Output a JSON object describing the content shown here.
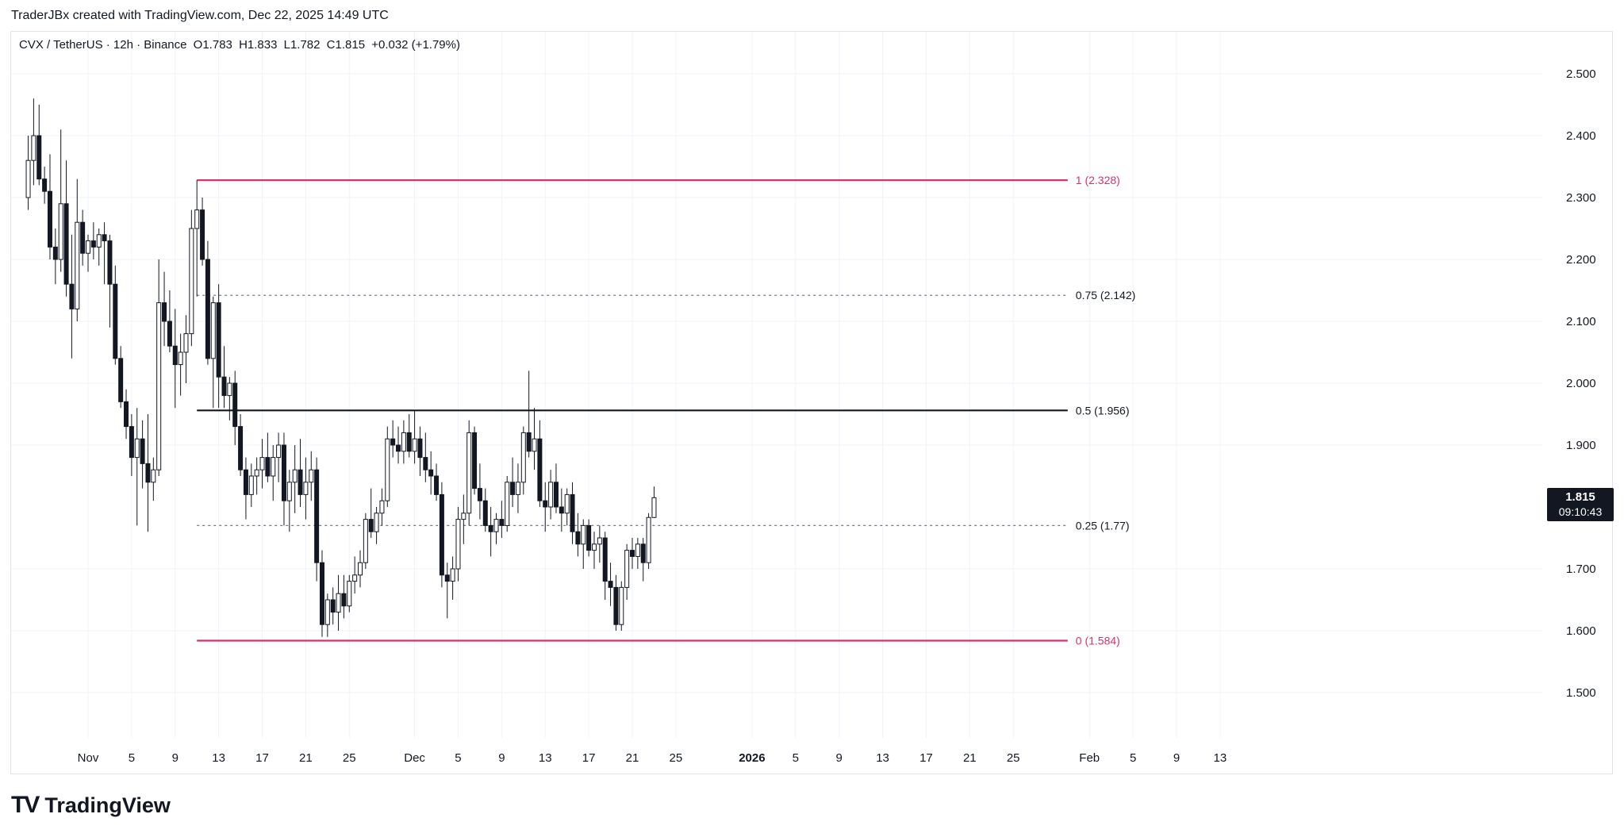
{
  "header": {
    "attribution": "TraderJBx created with TradingView.com, Dec 22, 2025 14:49 UTC"
  },
  "legend": {
    "symbol": "CVX / TetherUS · 12h · Binance",
    "open": "O1.783",
    "high": "H1.833",
    "low": "L1.782",
    "close": "C1.815",
    "change": "+0.032 (+1.79%)"
  },
  "price_badge": {
    "price": "1.815",
    "countdown": "09:10:43"
  },
  "logo": {
    "mark": "TV",
    "text": "TradingView"
  },
  "colors": {
    "fib_edge": "#d6336c",
    "fib_mid": "#131722",
    "fib_dotted": "#787b86",
    "grid": "#f0f3fa",
    "candle": "#131722"
  },
  "chart_data": {
    "type": "candlestick",
    "title": "",
    "ylim": [
      1.4,
      2.57
    ],
    "yticks": [
      "2.500",
      "2.400",
      "2.300",
      "2.200",
      "2.100",
      "2.000",
      "1.900",
      "1.700",
      "1.600",
      "1.500"
    ],
    "xticks": [
      {
        "label": "Nov",
        "t": 0
      },
      {
        "label": "5",
        "t": 8
      },
      {
        "label": "9",
        "t": 16
      },
      {
        "label": "13",
        "t": 24
      },
      {
        "label": "17",
        "t": 32
      },
      {
        "label": "21",
        "t": 40
      },
      {
        "label": "25",
        "t": 48
      },
      {
        "label": "Dec",
        "t": 60
      },
      {
        "label": "5",
        "t": 68
      },
      {
        "label": "9",
        "t": 76
      },
      {
        "label": "13",
        "t": 84
      },
      {
        "label": "17",
        "t": 92
      },
      {
        "label": "21",
        "t": 100
      },
      {
        "label": "25",
        "t": 108
      },
      {
        "label": "2026",
        "t": 122
      },
      {
        "label": "5",
        "t": 130
      },
      {
        "label": "9",
        "t": 138
      },
      {
        "label": "13",
        "t": 146
      },
      {
        "label": "17",
        "t": 154
      },
      {
        "label": "21",
        "t": 162
      },
      {
        "label": "25",
        "t": 170
      },
      {
        "label": "Feb",
        "t": 184
      },
      {
        "label": "5",
        "t": 192
      },
      {
        "label": "9",
        "t": 200
      },
      {
        "label": "13",
        "t": 208
      }
    ],
    "fib_levels": [
      {
        "label": "1 (2.328)",
        "value": 2.328,
        "style": "solid-edge"
      },
      {
        "label": "0.75 (2.142)",
        "value": 2.142,
        "style": "dotted"
      },
      {
        "label": "0.5 (1.956)",
        "value": 1.956,
        "style": "solid-mid"
      },
      {
        "label": "0.25 (1.77)",
        "value": 1.77,
        "style": "dotted"
      },
      {
        "label": "0 (1.584)",
        "value": 1.584,
        "style": "solid-edge"
      }
    ],
    "fib_start_t": 20,
    "fib_end_t": 180,
    "candles": [
      {
        "t": -11,
        "o": 2.3,
        "h": 2.4,
        "l": 2.28,
        "c": 2.36
      },
      {
        "t": -10,
        "o": 2.36,
        "h": 2.46,
        "l": 2.32,
        "c": 2.4
      },
      {
        "t": -9,
        "o": 2.4,
        "h": 2.45,
        "l": 2.32,
        "c": 2.33
      },
      {
        "t": -8,
        "o": 2.33,
        "h": 2.35,
        "l": 2.29,
        "c": 2.31
      },
      {
        "t": -7,
        "o": 2.31,
        "h": 2.37,
        "l": 2.2,
        "c": 2.22
      },
      {
        "t": -6,
        "o": 2.22,
        "h": 2.25,
        "l": 2.16,
        "c": 2.2
      },
      {
        "t": -5,
        "o": 2.2,
        "h": 2.41,
        "l": 2.18,
        "c": 2.29
      },
      {
        "t": -4,
        "o": 2.29,
        "h": 2.36,
        "l": 2.14,
        "c": 2.16
      },
      {
        "t": -3,
        "o": 2.16,
        "h": 2.24,
        "l": 2.04,
        "c": 2.12
      },
      {
        "t": -2,
        "o": 2.12,
        "h": 2.33,
        "l": 2.1,
        "c": 2.26
      },
      {
        "t": -1,
        "o": 2.26,
        "h": 2.28,
        "l": 2.19,
        "c": 2.21
      },
      {
        "t": 0,
        "o": 2.21,
        "h": 2.24,
        "l": 2.18,
        "c": 2.23
      },
      {
        "t": 1,
        "o": 2.23,
        "h": 2.26,
        "l": 2.2,
        "c": 2.22
      },
      {
        "t": 2,
        "o": 2.22,
        "h": 2.25,
        "l": 2.19,
        "c": 2.24
      },
      {
        "t": 3,
        "o": 2.24,
        "h": 2.26,
        "l": 2.16,
        "c": 2.23
      },
      {
        "t": 4,
        "o": 2.23,
        "h": 2.24,
        "l": 2.09,
        "c": 2.16
      },
      {
        "t": 5,
        "o": 2.16,
        "h": 2.19,
        "l": 2.03,
        "c": 2.04
      },
      {
        "t": 6,
        "o": 2.04,
        "h": 2.06,
        "l": 1.96,
        "c": 1.97
      },
      {
        "t": 7,
        "o": 1.97,
        "h": 1.99,
        "l": 1.91,
        "c": 1.93
      },
      {
        "t": 8,
        "o": 1.93,
        "h": 1.95,
        "l": 1.85,
        "c": 1.88
      },
      {
        "t": 9,
        "o": 1.88,
        "h": 1.96,
        "l": 1.77,
        "c": 1.91
      },
      {
        "t": 10,
        "o": 1.91,
        "h": 1.94,
        "l": 1.83,
        "c": 1.87
      },
      {
        "t": 11,
        "o": 1.87,
        "h": 1.95,
        "l": 1.76,
        "c": 1.84
      },
      {
        "t": 12,
        "o": 1.84,
        "h": 1.88,
        "l": 1.81,
        "c": 1.86
      },
      {
        "t": 13,
        "o": 1.86,
        "h": 2.2,
        "l": 1.85,
        "c": 2.13
      },
      {
        "t": 14,
        "o": 2.13,
        "h": 2.18,
        "l": 2.06,
        "c": 2.1
      },
      {
        "t": 15,
        "o": 2.1,
        "h": 2.15,
        "l": 2.05,
        "c": 2.06
      },
      {
        "t": 16,
        "o": 2.06,
        "h": 2.12,
        "l": 1.96,
        "c": 2.03
      },
      {
        "t": 17,
        "o": 2.03,
        "h": 2.08,
        "l": 1.98,
        "c": 2.05
      },
      {
        "t": 18,
        "o": 2.05,
        "h": 2.11,
        "l": 2.0,
        "c": 2.08
      },
      {
        "t": 19,
        "o": 2.08,
        "h": 2.28,
        "l": 2.06,
        "c": 2.25
      },
      {
        "t": 20,
        "o": 2.25,
        "h": 2.328,
        "l": 2.14,
        "c": 2.28
      },
      {
        "t": 21,
        "o": 2.28,
        "h": 2.3,
        "l": 2.19,
        "c": 2.2
      },
      {
        "t": 22,
        "o": 2.2,
        "h": 2.23,
        "l": 2.03,
        "c": 2.04
      },
      {
        "t": 23,
        "o": 2.04,
        "h": 2.14,
        "l": 1.96,
        "c": 2.13
      },
      {
        "t": 24,
        "o": 2.13,
        "h": 2.16,
        "l": 1.96,
        "c": 2.01
      },
      {
        "t": 25,
        "o": 2.01,
        "h": 2.06,
        "l": 1.96,
        "c": 1.98
      },
      {
        "t": 26,
        "o": 1.98,
        "h": 2.01,
        "l": 1.94,
        "c": 2.0
      },
      {
        "t": 27,
        "o": 2.0,
        "h": 2.02,
        "l": 1.9,
        "c": 1.93
      },
      {
        "t": 28,
        "o": 1.93,
        "h": 1.95,
        "l": 1.85,
        "c": 1.86
      },
      {
        "t": 29,
        "o": 1.86,
        "h": 1.88,
        "l": 1.78,
        "c": 1.82
      },
      {
        "t": 30,
        "o": 1.82,
        "h": 1.87,
        "l": 1.8,
        "c": 1.85
      },
      {
        "t": 31,
        "o": 1.85,
        "h": 1.88,
        "l": 1.82,
        "c": 1.86
      },
      {
        "t": 32,
        "o": 1.86,
        "h": 1.91,
        "l": 1.83,
        "c": 1.88
      },
      {
        "t": 33,
        "o": 1.88,
        "h": 1.92,
        "l": 1.84,
        "c": 1.85
      },
      {
        "t": 34,
        "o": 1.85,
        "h": 1.9,
        "l": 1.81,
        "c": 1.88
      },
      {
        "t": 35,
        "o": 1.88,
        "h": 1.92,
        "l": 1.84,
        "c": 1.9
      },
      {
        "t": 36,
        "o": 1.9,
        "h": 1.92,
        "l": 1.77,
        "c": 1.81
      },
      {
        "t": 37,
        "o": 1.81,
        "h": 1.86,
        "l": 1.76,
        "c": 1.84
      },
      {
        "t": 38,
        "o": 1.84,
        "h": 1.9,
        "l": 1.79,
        "c": 1.86
      },
      {
        "t": 39,
        "o": 1.86,
        "h": 1.91,
        "l": 1.8,
        "c": 1.82
      },
      {
        "t": 40,
        "o": 1.82,
        "h": 1.88,
        "l": 1.78,
        "c": 1.84
      },
      {
        "t": 41,
        "o": 1.84,
        "h": 1.89,
        "l": 1.81,
        "c": 1.86
      },
      {
        "t": 42,
        "o": 1.86,
        "h": 1.88,
        "l": 1.68,
        "c": 1.71
      },
      {
        "t": 43,
        "o": 1.71,
        "h": 1.73,
        "l": 1.59,
        "c": 1.61
      },
      {
        "t": 44,
        "o": 1.61,
        "h": 1.66,
        "l": 1.59,
        "c": 1.65
      },
      {
        "t": 45,
        "o": 1.65,
        "h": 1.67,
        "l": 1.61,
        "c": 1.63
      },
      {
        "t": 46,
        "o": 1.63,
        "h": 1.69,
        "l": 1.6,
        "c": 1.66
      },
      {
        "t": 47,
        "o": 1.66,
        "h": 1.69,
        "l": 1.62,
        "c": 1.64
      },
      {
        "t": 48,
        "o": 1.64,
        "h": 1.69,
        "l": 1.63,
        "c": 1.68
      },
      {
        "t": 49,
        "o": 1.68,
        "h": 1.72,
        "l": 1.66,
        "c": 1.69
      },
      {
        "t": 50,
        "o": 1.69,
        "h": 1.73,
        "l": 1.67,
        "c": 1.71
      },
      {
        "t": 51,
        "o": 1.71,
        "h": 1.79,
        "l": 1.7,
        "c": 1.78
      },
      {
        "t": 52,
        "o": 1.78,
        "h": 1.83,
        "l": 1.75,
        "c": 1.76
      },
      {
        "t": 53,
        "o": 1.76,
        "h": 1.8,
        "l": 1.74,
        "c": 1.79
      },
      {
        "t": 54,
        "o": 1.79,
        "h": 1.83,
        "l": 1.77,
        "c": 1.81
      },
      {
        "t": 55,
        "o": 1.81,
        "h": 1.93,
        "l": 1.8,
        "c": 1.91
      },
      {
        "t": 56,
        "o": 1.91,
        "h": 1.94,
        "l": 1.88,
        "c": 1.9
      },
      {
        "t": 57,
        "o": 1.9,
        "h": 1.93,
        "l": 1.87,
        "c": 1.89
      },
      {
        "t": 58,
        "o": 1.89,
        "h": 1.94,
        "l": 1.87,
        "c": 1.92
      },
      {
        "t": 59,
        "o": 1.92,
        "h": 1.95,
        "l": 1.88,
        "c": 1.89
      },
      {
        "t": 60,
        "o": 1.89,
        "h": 1.956,
        "l": 1.87,
        "c": 1.91
      },
      {
        "t": 61,
        "o": 1.91,
        "h": 1.93,
        "l": 1.85,
        "c": 1.88
      },
      {
        "t": 62,
        "o": 1.88,
        "h": 1.92,
        "l": 1.84,
        "c": 1.86
      },
      {
        "t": 63,
        "o": 1.86,
        "h": 1.89,
        "l": 1.82,
        "c": 1.85
      },
      {
        "t": 64,
        "o": 1.85,
        "h": 1.87,
        "l": 1.81,
        "c": 1.82
      },
      {
        "t": 65,
        "o": 1.82,
        "h": 1.84,
        "l": 1.67,
        "c": 1.69
      },
      {
        "t": 66,
        "o": 1.69,
        "h": 1.71,
        "l": 1.62,
        "c": 1.68
      },
      {
        "t": 67,
        "o": 1.68,
        "h": 1.72,
        "l": 1.65,
        "c": 1.7
      },
      {
        "t": 68,
        "o": 1.7,
        "h": 1.8,
        "l": 1.68,
        "c": 1.78
      },
      {
        "t": 69,
        "o": 1.78,
        "h": 1.82,
        "l": 1.74,
        "c": 1.79
      },
      {
        "t": 70,
        "o": 1.79,
        "h": 1.94,
        "l": 1.77,
        "c": 1.92
      },
      {
        "t": 71,
        "o": 1.92,
        "h": 1.93,
        "l": 1.82,
        "c": 1.83
      },
      {
        "t": 72,
        "o": 1.83,
        "h": 1.87,
        "l": 1.78,
        "c": 1.81
      },
      {
        "t": 73,
        "o": 1.81,
        "h": 1.83,
        "l": 1.76,
        "c": 1.77
      },
      {
        "t": 74,
        "o": 1.77,
        "h": 1.8,
        "l": 1.72,
        "c": 1.76
      },
      {
        "t": 75,
        "o": 1.76,
        "h": 1.79,
        "l": 1.74,
        "c": 1.78
      },
      {
        "t": 76,
        "o": 1.78,
        "h": 1.81,
        "l": 1.75,
        "c": 1.77
      },
      {
        "t": 77,
        "o": 1.77,
        "h": 1.85,
        "l": 1.76,
        "c": 1.84
      },
      {
        "t": 78,
        "o": 1.84,
        "h": 1.88,
        "l": 1.8,
        "c": 1.82
      },
      {
        "t": 79,
        "o": 1.82,
        "h": 1.87,
        "l": 1.79,
        "c": 1.84
      },
      {
        "t": 80,
        "o": 1.84,
        "h": 1.93,
        "l": 1.82,
        "c": 1.92
      },
      {
        "t": 81,
        "o": 1.92,
        "h": 2.02,
        "l": 1.88,
        "c": 1.89
      },
      {
        "t": 82,
        "o": 1.89,
        "h": 1.96,
        "l": 1.86,
        "c": 1.91
      },
      {
        "t": 83,
        "o": 1.91,
        "h": 1.94,
        "l": 1.8,
        "c": 1.81
      },
      {
        "t": 84,
        "o": 1.81,
        "h": 1.84,
        "l": 1.76,
        "c": 1.8
      },
      {
        "t": 85,
        "o": 1.8,
        "h": 1.86,
        "l": 1.78,
        "c": 1.84
      },
      {
        "t": 86,
        "o": 1.84,
        "h": 1.87,
        "l": 1.79,
        "c": 1.8
      },
      {
        "t": 87,
        "o": 1.8,
        "h": 1.83,
        "l": 1.76,
        "c": 1.79
      },
      {
        "t": 88,
        "o": 1.79,
        "h": 1.83,
        "l": 1.77,
        "c": 1.82
      },
      {
        "t": 89,
        "o": 1.82,
        "h": 1.84,
        "l": 1.74,
        "c": 1.76
      },
      {
        "t": 90,
        "o": 1.76,
        "h": 1.79,
        "l": 1.72,
        "c": 1.74
      },
      {
        "t": 91,
        "o": 1.74,
        "h": 1.78,
        "l": 1.7,
        "c": 1.77
      },
      {
        "t": 92,
        "o": 1.77,
        "h": 1.78,
        "l": 1.72,
        "c": 1.73
      },
      {
        "t": 93,
        "o": 1.73,
        "h": 1.76,
        "l": 1.7,
        "c": 1.74
      },
      {
        "t": 94,
        "o": 1.74,
        "h": 1.77,
        "l": 1.71,
        "c": 1.75
      },
      {
        "t": 95,
        "o": 1.75,
        "h": 1.76,
        "l": 1.65,
        "c": 1.68
      },
      {
        "t": 96,
        "o": 1.68,
        "h": 1.71,
        "l": 1.64,
        "c": 1.67
      },
      {
        "t": 97,
        "o": 1.67,
        "h": 1.69,
        "l": 1.6,
        "c": 1.61
      },
      {
        "t": 98,
        "o": 1.61,
        "h": 1.68,
        "l": 1.6,
        "c": 1.67
      },
      {
        "t": 99,
        "o": 1.67,
        "h": 1.74,
        "l": 1.65,
        "c": 1.73
      },
      {
        "t": 100,
        "o": 1.73,
        "h": 1.75,
        "l": 1.7,
        "c": 1.72
      },
      {
        "t": 101,
        "o": 1.72,
        "h": 1.75,
        "l": 1.7,
        "c": 1.74
      },
      {
        "t": 102,
        "o": 1.74,
        "h": 1.75,
        "l": 1.68,
        "c": 1.71
      },
      {
        "t": 103,
        "o": 1.71,
        "h": 1.79,
        "l": 1.7,
        "c": 1.783
      },
      {
        "t": 104,
        "o": 1.783,
        "h": 1.833,
        "l": 1.782,
        "c": 1.815
      }
    ]
  }
}
